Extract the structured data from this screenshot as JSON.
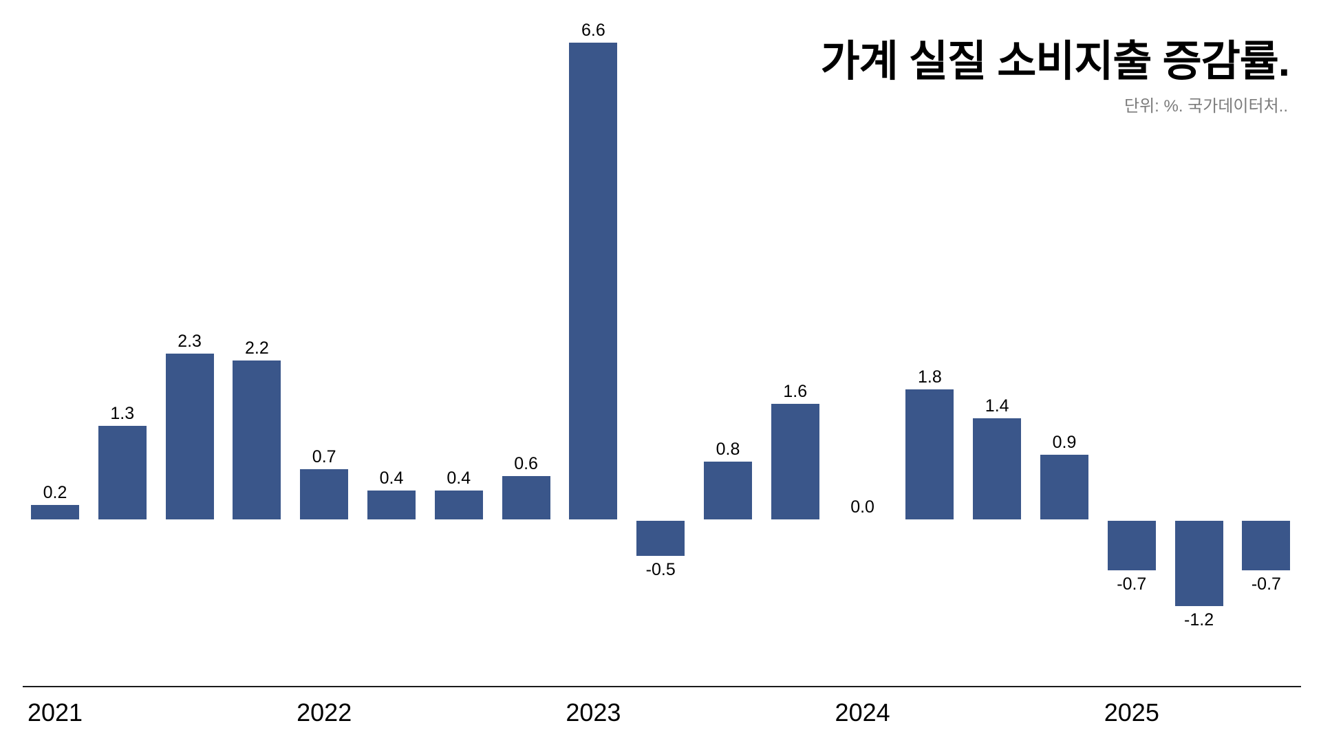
{
  "chart_data": {
    "type": "bar",
    "title": "가계 실질 소비지출 증감률.",
    "subtitle": "단위: %. 국가데이터처..",
    "unit": "%",
    "bar_color": "#3A568A",
    "value_label_color": "#000000",
    "title_color": "#000000",
    "subtitle_color": "#7B7B7B",
    "axis_line_color": "#1A1A1A",
    "background_color": "#FFFFFF",
    "legend": "none",
    "grid": "off",
    "y_axis": "hidden",
    "ylim": [
      -1.5,
      7.0
    ],
    "x_tick_labels": [
      "2021",
      "2022",
      "2023",
      "2024",
      "2025"
    ],
    "x_ticks": [
      {
        "label": "2021",
        "point_index": 0
      },
      {
        "label": "2022",
        "point_index": 4
      },
      {
        "label": "2023",
        "point_index": 8
      },
      {
        "label": "2024",
        "point_index": 12
      },
      {
        "label": "2025",
        "point_index": 16
      }
    ],
    "points": [
      {
        "year": "2021",
        "value": 0.2,
        "label": "0.2"
      },
      {
        "year": "2021",
        "value": 1.3,
        "label": "1.3"
      },
      {
        "year": "2021",
        "value": 2.3,
        "label": "2.3"
      },
      {
        "year": "2021",
        "value": 2.2,
        "label": "2.2"
      },
      {
        "year": "2022",
        "value": 0.7,
        "label": "0.7"
      },
      {
        "year": "2022",
        "value": 0.4,
        "label": "0.4"
      },
      {
        "year": "2022",
        "value": 0.4,
        "label": "0.4"
      },
      {
        "year": "2022",
        "value": 0.6,
        "label": "0.6"
      },
      {
        "year": "2023",
        "value": 6.6,
        "label": "6.6"
      },
      {
        "year": "2023",
        "value": -0.5,
        "label": "-0.5"
      },
      {
        "year": "2023",
        "value": 0.8,
        "label": "0.8"
      },
      {
        "year": "2023",
        "value": 1.6,
        "label": "1.6"
      },
      {
        "year": "2024",
        "value": 0.0,
        "label": "0.0"
      },
      {
        "year": "2024",
        "value": 1.8,
        "label": "1.8"
      },
      {
        "year": "2024",
        "value": 1.4,
        "label": "1.4"
      },
      {
        "year": "2024",
        "value": 0.9,
        "label": "0.9"
      },
      {
        "year": "2025",
        "value": -0.7,
        "label": "-0.7"
      },
      {
        "year": "2025",
        "value": -1.2,
        "label": "-1.2"
      },
      {
        "year": "2025",
        "value": -0.7,
        "label": "-0.7"
      }
    ]
  }
}
